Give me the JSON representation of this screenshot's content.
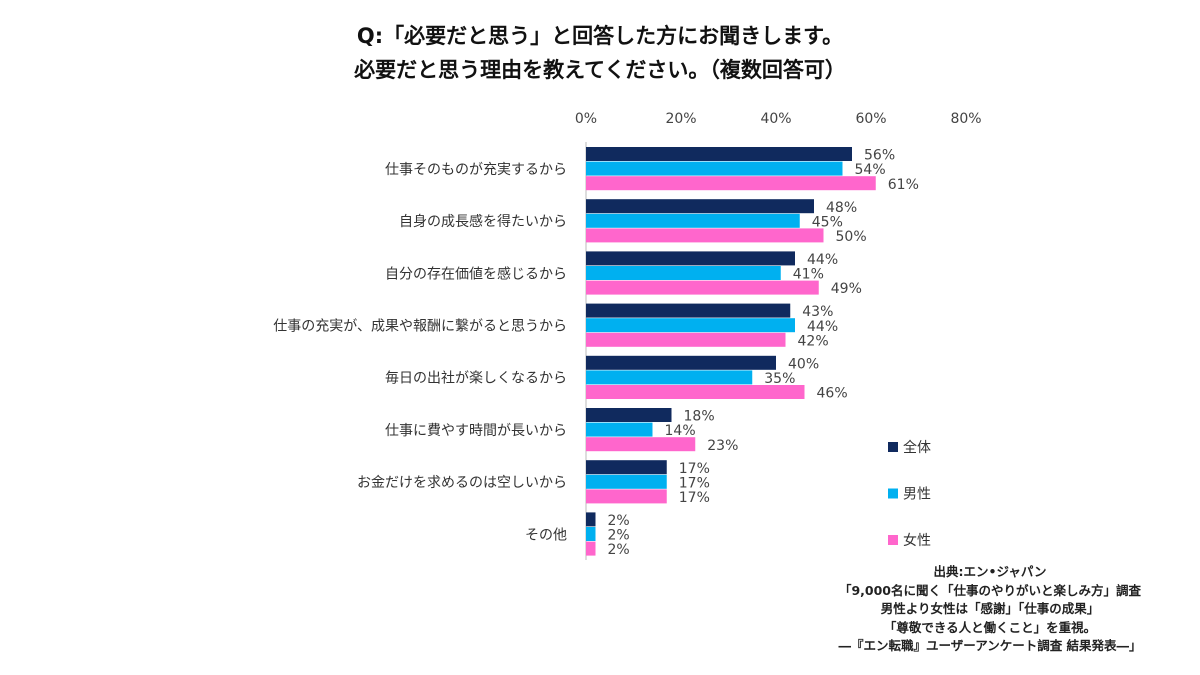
{
  "title_line1": "Q:「必要だと思う」と回答した方にお聞きします。",
  "title_line2": "必要だと思う理由を教えてください。（複数回答可）",
  "chart_data": {
    "type": "bar",
    "orientation": "horizontal",
    "categories": [
      "仕事そのものが充実するから",
      "自身の成長感を得たいから",
      "自分の存在価値を感じるから",
      "仕事の充実が、成果や報酬に繋がると思うから",
      "毎日の出社が楽しくなるから",
      "仕事に費やす時間が長いから",
      "お金だけを求めるのは空しいから",
      "その他"
    ],
    "series": [
      {
        "name": "全体",
        "color": "#102a5e",
        "values": [
          56,
          48,
          44,
          43,
          40,
          18,
          17,
          2
        ]
      },
      {
        "name": "男性",
        "color": "#00b0f0",
        "values": [
          54,
          45,
          41,
          44,
          35,
          14,
          17,
          2
        ]
      },
      {
        "name": "女性",
        "color": "#ff66cc",
        "values": [
          61,
          50,
          49,
          42,
          46,
          23,
          17,
          2
        ]
      }
    ],
    "xlim": [
      0,
      80
    ],
    "xticks": [
      "0%",
      "20%",
      "40%",
      "60%",
      "80%"
    ],
    "value_suffix": "%",
    "legend_position": "right",
    "grid": false
  },
  "source_lines": [
    "出典:エン•ジャパン",
    "「9,000名に聞く「仕事のやりがいと楽しみ方」調査",
    "男性より女性は「感謝」「仕事の成果」",
    "「尊敬できる人と働くこと」を重視。",
    "―『エン転職』ユーザーアンケート調査 結果発表―」"
  ]
}
